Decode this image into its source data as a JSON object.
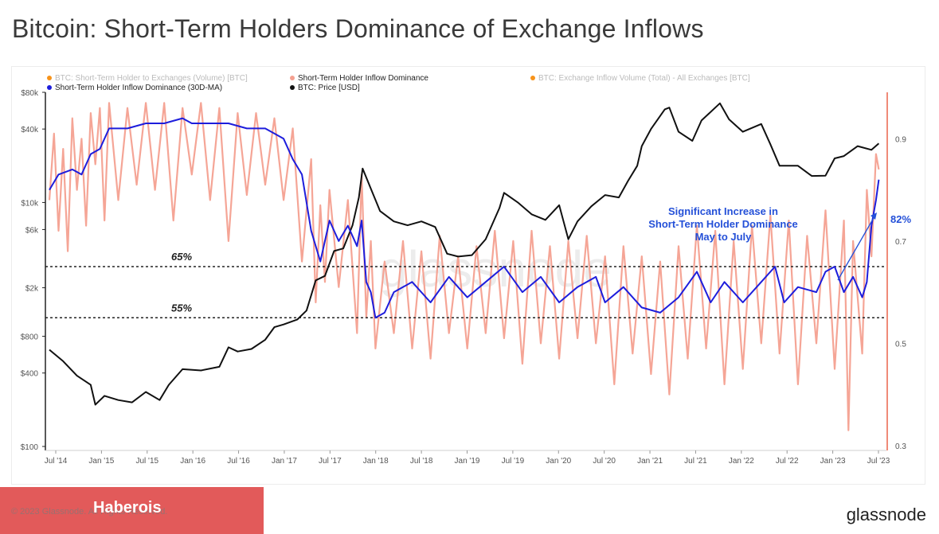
{
  "page": {
    "title": "Bitcoin: Short-Term Holders Dominance of Exchange Inflows"
  },
  "chart_data": {
    "type": "line",
    "legend": [
      {
        "label": "BTC: Short-Term Holder to Exchanges (Volume) [BTC]",
        "color": "#f7931a",
        "active": false
      },
      {
        "label": "Short-Term Holder Inflow Dominance",
        "color": "#f4a090",
        "active": true
      },
      {
        "label": "BTC: Exchange Inflow Volume (Total) - All Exchanges [BTC]",
        "color": "#f7931a",
        "active": false
      },
      {
        "label": "Short-Term Holder Inflow Dominance (30D-MA)",
        "color": "#1d1ddc",
        "active": true
      },
      {
        "label": "BTC: Price [USD]",
        "color": "#111111",
        "active": true
      }
    ],
    "x_ticks": [
      "Jul '14",
      "Jan '15",
      "Jul '15",
      "Jan '16",
      "Jul '16",
      "Jan '17",
      "Jul '17",
      "Jan '18",
      "Jul '18",
      "Jan '19",
      "Jul '19",
      "Jan '20",
      "Jul '20",
      "Jan '21",
      "Jul '21",
      "Jan '22",
      "Jul '22",
      "Jan '23",
      "Jul '23"
    ],
    "y_left": {
      "scale": "log",
      "range": [
        100,
        80000
      ],
      "ticks": [
        "$80k",
        "$40k",
        "$10k",
        "$6k",
        "$2k",
        "$800",
        "$400",
        "$100"
      ]
    },
    "y_right": {
      "scale": "linear",
      "range": [
        0.3,
        1.0
      ],
      "ticks": [
        "0.9",
        "0.7",
        "0.5",
        "0.3"
      ]
    },
    "reference_lines": [
      {
        "value": 0.65,
        "label": "65%"
      },
      {
        "value": 0.55,
        "label": "55%"
      }
    ],
    "annotation": {
      "lines": [
        "Significant Increase in",
        "Short-Term Holder Dominance",
        "May to July"
      ],
      "end_value_label": "82%"
    },
    "series": [
      {
        "name": "BTC: Price [USD]",
        "axis": "left",
        "color": "#111111",
        "points": [
          [
            2014.55,
            620
          ],
          [
            2014.7,
            500
          ],
          [
            2014.85,
            380
          ],
          [
            2015.0,
            320
          ],
          [
            2015.05,
            220
          ],
          [
            2015.15,
            260
          ],
          [
            2015.3,
            240
          ],
          [
            2015.45,
            230
          ],
          [
            2015.6,
            280
          ],
          [
            2015.75,
            240
          ],
          [
            2015.85,
            320
          ],
          [
            2016.0,
            430
          ],
          [
            2016.2,
            420
          ],
          [
            2016.4,
            450
          ],
          [
            2016.5,
            650
          ],
          [
            2016.6,
            600
          ],
          [
            2016.75,
            630
          ],
          [
            2016.9,
            750
          ],
          [
            2017.0,
            950
          ],
          [
            2017.1,
            1000
          ],
          [
            2017.25,
            1100
          ],
          [
            2017.35,
            1300
          ],
          [
            2017.45,
            2300
          ],
          [
            2017.55,
            2500
          ],
          [
            2017.65,
            4000
          ],
          [
            2017.75,
            4200
          ],
          [
            2017.85,
            6500
          ],
          [
            2017.92,
            11000
          ],
          [
            2017.96,
            19000
          ],
          [
            2018.05,
            13000
          ],
          [
            2018.15,
            8500
          ],
          [
            2018.3,
            7000
          ],
          [
            2018.45,
            6500
          ],
          [
            2018.6,
            7000
          ],
          [
            2018.75,
            6300
          ],
          [
            2018.88,
            3800
          ],
          [
            2019.0,
            3600
          ],
          [
            2019.15,
            3700
          ],
          [
            2019.3,
            5000
          ],
          [
            2019.45,
            9000
          ],
          [
            2019.5,
            12000
          ],
          [
            2019.65,
            10000
          ],
          [
            2019.8,
            8000
          ],
          [
            2019.95,
            7200
          ],
          [
            2020.1,
            9500
          ],
          [
            2020.2,
            5000
          ],
          [
            2020.3,
            7000
          ],
          [
            2020.45,
            9300
          ],
          [
            2020.6,
            11500
          ],
          [
            2020.75,
            11000
          ],
          [
            2020.85,
            15000
          ],
          [
            2020.95,
            20000
          ],
          [
            2021.0,
            29000
          ],
          [
            2021.1,
            40000
          ],
          [
            2021.25,
            58000
          ],
          [
            2021.3,
            60000
          ],
          [
            2021.4,
            38000
          ],
          [
            2021.55,
            32000
          ],
          [
            2021.65,
            47000
          ],
          [
            2021.85,
            65000
          ],
          [
            2021.95,
            48000
          ],
          [
            2022.1,
            38000
          ],
          [
            2022.3,
            44000
          ],
          [
            2022.4,
            30000
          ],
          [
            2022.5,
            20000
          ],
          [
            2022.7,
            20000
          ],
          [
            2022.85,
            16500
          ],
          [
            2023.0,
            16600
          ],
          [
            2023.1,
            23000
          ],
          [
            2023.2,
            24000
          ],
          [
            2023.35,
            29000
          ],
          [
            2023.5,
            27000
          ],
          [
            2023.58,
            30500
          ]
        ]
      },
      {
        "name": "Short-Term Holder Inflow Dominance (30D-MA)",
        "axis": "right",
        "color": "#1d1ddc",
        "points": [
          [
            2014.55,
            0.8
          ],
          [
            2014.65,
            0.83
          ],
          [
            2014.8,
            0.84
          ],
          [
            2014.9,
            0.83
          ],
          [
            2015.0,
            0.87
          ],
          [
            2015.1,
            0.88
          ],
          [
            2015.2,
            0.92
          ],
          [
            2015.4,
            0.92
          ],
          [
            2015.6,
            0.93
          ],
          [
            2015.8,
            0.93
          ],
          [
            2016.0,
            0.94
          ],
          [
            2016.1,
            0.93
          ],
          [
            2016.3,
            0.93
          ],
          [
            2016.5,
            0.93
          ],
          [
            2016.7,
            0.92
          ],
          [
            2016.9,
            0.92
          ],
          [
            2017.1,
            0.9
          ],
          [
            2017.2,
            0.86
          ],
          [
            2017.3,
            0.83
          ],
          [
            2017.4,
            0.72
          ],
          [
            2017.5,
            0.66
          ],
          [
            2017.6,
            0.74
          ],
          [
            2017.7,
            0.7
          ],
          [
            2017.8,
            0.73
          ],
          [
            2017.9,
            0.69
          ],
          [
            2017.95,
            0.74
          ],
          [
            2018.0,
            0.62
          ],
          [
            2018.05,
            0.6
          ],
          [
            2018.1,
            0.55
          ],
          [
            2018.2,
            0.56
          ],
          [
            2018.3,
            0.6
          ],
          [
            2018.5,
            0.62
          ],
          [
            2018.7,
            0.58
          ],
          [
            2018.9,
            0.63
          ],
          [
            2019.1,
            0.59
          ],
          [
            2019.3,
            0.62
          ],
          [
            2019.5,
            0.65
          ],
          [
            2019.7,
            0.6
          ],
          [
            2019.9,
            0.63
          ],
          [
            2020.1,
            0.58
          ],
          [
            2020.3,
            0.61
          ],
          [
            2020.5,
            0.63
          ],
          [
            2020.6,
            0.58
          ],
          [
            2020.8,
            0.61
          ],
          [
            2021.0,
            0.57
          ],
          [
            2021.2,
            0.56
          ],
          [
            2021.4,
            0.59
          ],
          [
            2021.6,
            0.64
          ],
          [
            2021.75,
            0.58
          ],
          [
            2021.9,
            0.62
          ],
          [
            2022.1,
            0.58
          ],
          [
            2022.3,
            0.62
          ],
          [
            2022.45,
            0.65
          ],
          [
            2022.55,
            0.58
          ],
          [
            2022.7,
            0.61
          ],
          [
            2022.9,
            0.6
          ],
          [
            2023.0,
            0.64
          ],
          [
            2023.1,
            0.65
          ],
          [
            2023.2,
            0.6
          ],
          [
            2023.3,
            0.63
          ],
          [
            2023.4,
            0.59
          ],
          [
            2023.45,
            0.62
          ],
          [
            2023.5,
            0.73
          ],
          [
            2023.55,
            0.78
          ],
          [
            2023.58,
            0.82
          ]
        ]
      },
      {
        "name": "Short-Term Holder Inflow Dominance",
        "axis": "right",
        "color": "#f4a090",
        "points": [
          [
            2014.55,
            0.78
          ],
          [
            2014.6,
            0.91
          ],
          [
            2014.65,
            0.72
          ],
          [
            2014.7,
            0.88
          ],
          [
            2014.75,
            0.68
          ],
          [
            2014.8,
            0.94
          ],
          [
            2014.85,
            0.8
          ],
          [
            2014.9,
            0.9
          ],
          [
            2014.95,
            0.73
          ],
          [
            2015.0,
            0.95
          ],
          [
            2015.05,
            0.85
          ],
          [
            2015.1,
            0.96
          ],
          [
            2015.15,
            0.74
          ],
          [
            2015.2,
            0.97
          ],
          [
            2015.3,
            0.78
          ],
          [
            2015.4,
            0.96
          ],
          [
            2015.5,
            0.81
          ],
          [
            2015.6,
            0.97
          ],
          [
            2015.7,
            0.8
          ],
          [
            2015.8,
            0.97
          ],
          [
            2015.9,
            0.74
          ],
          [
            2016.0,
            0.96
          ],
          [
            2016.1,
            0.83
          ],
          [
            2016.2,
            0.97
          ],
          [
            2016.3,
            0.78
          ],
          [
            2016.4,
            0.96
          ],
          [
            2016.5,
            0.7
          ],
          [
            2016.6,
            0.95
          ],
          [
            2016.7,
            0.79
          ],
          [
            2016.8,
            0.95
          ],
          [
            2016.9,
            0.81
          ],
          [
            2017.0,
            0.94
          ],
          [
            2017.1,
            0.78
          ],
          [
            2017.2,
            0.92
          ],
          [
            2017.3,
            0.66
          ],
          [
            2017.4,
            0.86
          ],
          [
            2017.45,
            0.58
          ],
          [
            2017.5,
            0.77
          ],
          [
            2017.55,
            0.62
          ],
          [
            2017.6,
            0.8
          ],
          [
            2017.7,
            0.61
          ],
          [
            2017.8,
            0.78
          ],
          [
            2017.9,
            0.52
          ],
          [
            2017.95,
            0.83
          ],
          [
            2018.0,
            0.55
          ],
          [
            2018.05,
            0.7
          ],
          [
            2018.1,
            0.49
          ],
          [
            2018.2,
            0.66
          ],
          [
            2018.3,
            0.52
          ],
          [
            2018.4,
            0.7
          ],
          [
            2018.5,
            0.49
          ],
          [
            2018.6,
            0.68
          ],
          [
            2018.7,
            0.47
          ],
          [
            2018.8,
            0.71
          ],
          [
            2018.9,
            0.52
          ],
          [
            2019.0,
            0.67
          ],
          [
            2019.1,
            0.49
          ],
          [
            2019.2,
            0.69
          ],
          [
            2019.3,
            0.52
          ],
          [
            2019.4,
            0.72
          ],
          [
            2019.5,
            0.51
          ],
          [
            2019.6,
            0.7
          ],
          [
            2019.7,
            0.46
          ],
          [
            2019.8,
            0.72
          ],
          [
            2019.9,
            0.5
          ],
          [
            2020.0,
            0.69
          ],
          [
            2020.1,
            0.47
          ],
          [
            2020.2,
            0.7
          ],
          [
            2020.3,
            0.51
          ],
          [
            2020.4,
            0.71
          ],
          [
            2020.5,
            0.5
          ],
          [
            2020.6,
            0.67
          ],
          [
            2020.7,
            0.42
          ],
          [
            2020.8,
            0.69
          ],
          [
            2020.9,
            0.48
          ],
          [
            2021.0,
            0.67
          ],
          [
            2021.1,
            0.44
          ],
          [
            2021.2,
            0.66
          ],
          [
            2021.3,
            0.4
          ],
          [
            2021.4,
            0.69
          ],
          [
            2021.5,
            0.47
          ],
          [
            2021.6,
            0.73
          ],
          [
            2021.7,
            0.49
          ],
          [
            2021.8,
            0.72
          ],
          [
            2021.9,
            0.42
          ],
          [
            2022.0,
            0.7
          ],
          [
            2022.1,
            0.45
          ],
          [
            2022.2,
            0.73
          ],
          [
            2022.3,
            0.5
          ],
          [
            2022.4,
            0.75
          ],
          [
            2022.5,
            0.48
          ],
          [
            2022.6,
            0.74
          ],
          [
            2022.7,
            0.42
          ],
          [
            2022.8,
            0.71
          ],
          [
            2022.9,
            0.5
          ],
          [
            2023.0,
            0.76
          ],
          [
            2023.1,
            0.45
          ],
          [
            2023.2,
            0.74
          ],
          [
            2023.25,
            0.33
          ],
          [
            2023.3,
            0.7
          ],
          [
            2023.4,
            0.48
          ],
          [
            2023.45,
            0.8
          ],
          [
            2023.5,
            0.67
          ],
          [
            2023.55,
            0.87
          ],
          [
            2023.58,
            0.84
          ]
        ]
      }
    ]
  },
  "footer": {
    "banner_text": "Haberois",
    "copyright": "© 2023 Glassnode. All Rights Reserved.",
    "brand": "glassnode"
  },
  "watermark": {
    "text": "glassnode"
  }
}
